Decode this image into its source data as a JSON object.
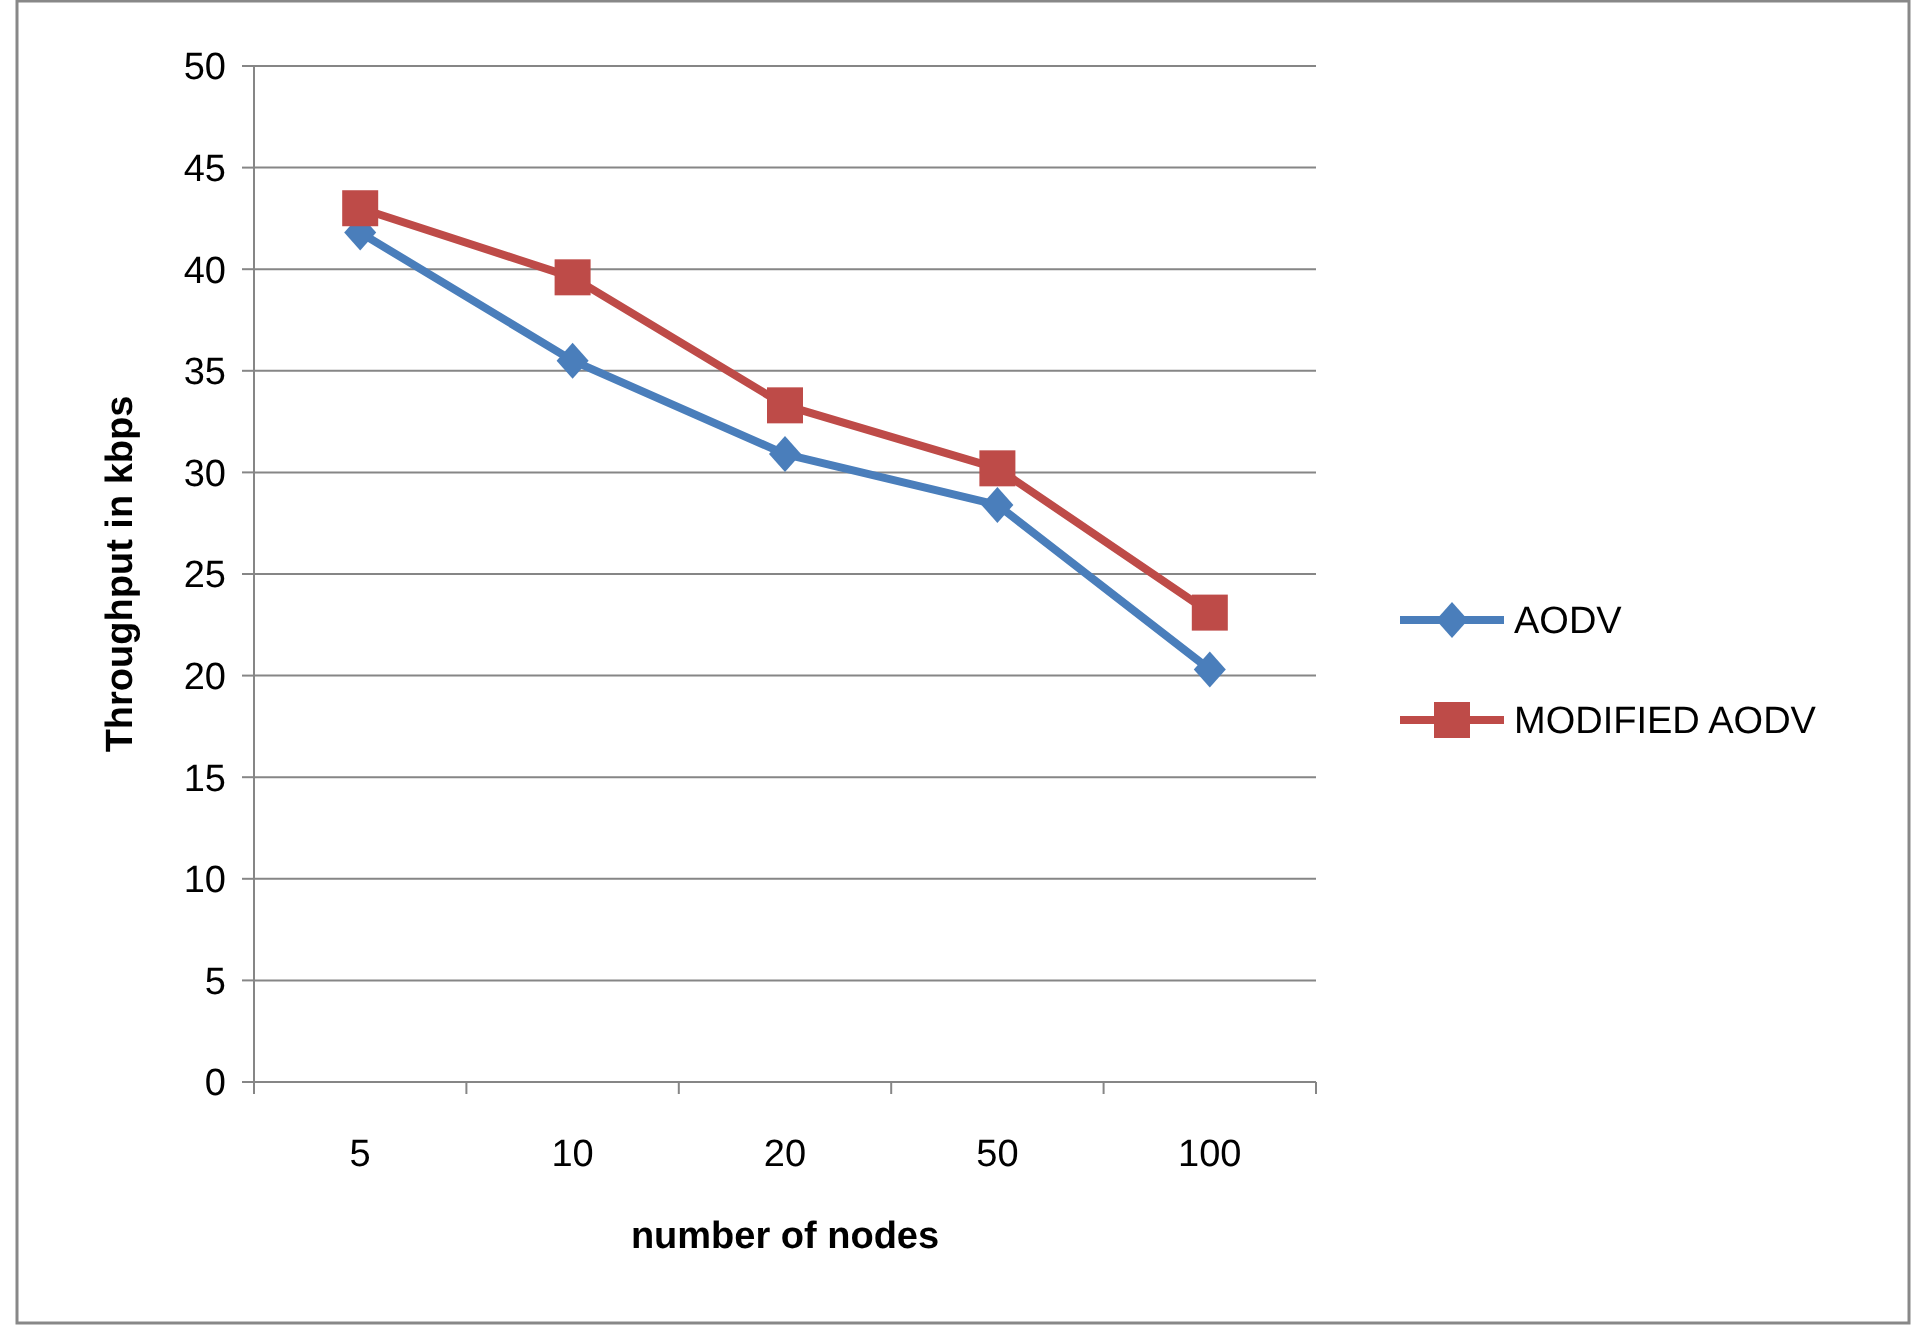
{
  "chart_data": {
    "type": "line",
    "xlabel": "number of nodes",
    "ylabel": "Throughput in kbps",
    "categories": [
      "5",
      "10",
      "20",
      "50",
      "100"
    ],
    "series": [
      {
        "name": "AODV",
        "color": "#4a7ebb",
        "marker": "diamond",
        "values": [
          41.8,
          35.5,
          30.9,
          28.4,
          20.3
        ]
      },
      {
        "name": "MODIFIED AODV",
        "color": "#be4b48",
        "marker": "square",
        "values": [
          43,
          39.6,
          33.3,
          30.2,
          23.1
        ]
      }
    ],
    "ylim": [
      0,
      50
    ],
    "yticks": [
      0,
      5,
      10,
      15,
      20,
      25,
      30,
      35,
      40,
      45,
      50
    ],
    "grid": "y",
    "legend": "right",
    "line_style": "solid"
  }
}
